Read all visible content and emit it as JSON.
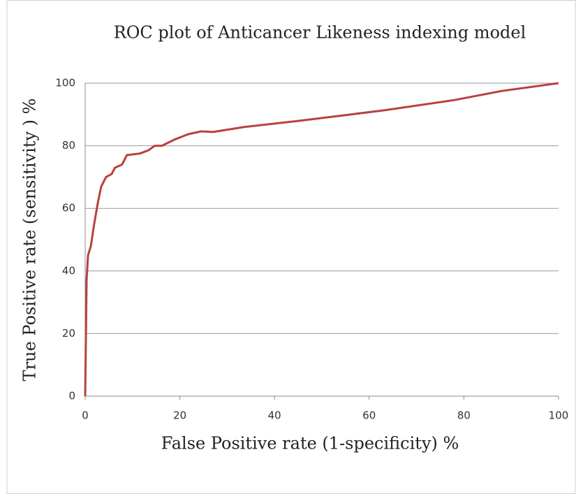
{
  "chart_data": {
    "type": "line",
    "title": "ROC plot of Anticancer Likeness indexing model",
    "xlabel": "False Positive rate (1-specificity) %",
    "ylabel": "True Positive rate (sensitivity ) %",
    "x": [
      0,
      0.3,
      0.6,
      1.2,
      1.9,
      2.7,
      3.4,
      4.4,
      5.6,
      6.3,
      7.8,
      8.8,
      11.5,
      13.3,
      14.7,
      16.2,
      18.9,
      21.8,
      24.5,
      27,
      33.6,
      45.4,
      63,
      78,
      88,
      100
    ],
    "values": [
      0,
      37,
      45,
      48,
      55,
      62,
      67,
      70,
      71,
      73,
      74,
      77,
      77.5,
      78.5,
      80,
      80,
      82,
      83.7,
      84.6,
      84.4,
      86,
      88,
      91.3,
      94.6,
      97.5,
      100
    ],
    "color": "#b9403f",
    "xlim": [
      0,
      100
    ],
    "xticks": [
      0,
      20,
      40,
      60,
      80,
      100
    ],
    "ylim": [
      0,
      100
    ],
    "yticks": [
      0,
      20,
      40,
      60,
      80,
      100
    ],
    "grid": true
  }
}
